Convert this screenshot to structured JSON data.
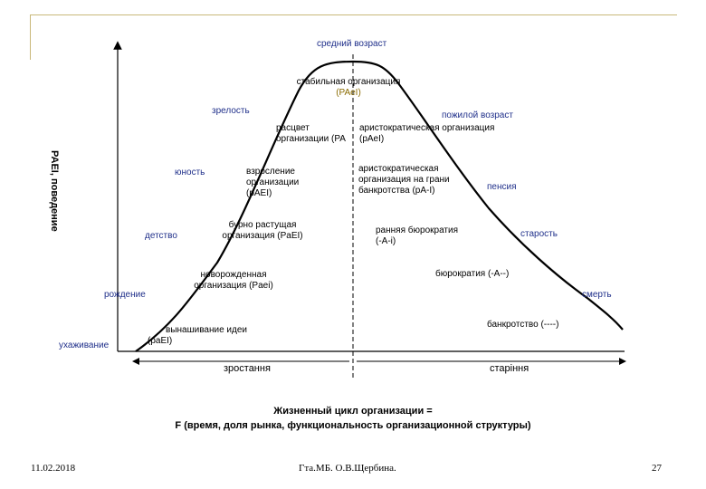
{
  "axis": {
    "y_label": "PAEI, поведение"
  },
  "stages": {
    "middle_age": "средний возраст",
    "stable_org_1": "стабильная организация",
    "stable_org_2": "(PAeI)",
    "maturity": "зрелость",
    "old_age": "пожилой возраст",
    "prime_1": "расцвет",
    "prime_2": "организации (PA",
    "aristo_1": "аристократическая организация",
    "aristo_2": "(pAeI)",
    "youth": "юность",
    "growing_1": "взросление",
    "growing_2": "организации",
    "growing_3": "(pAEI)",
    "bankrupt_edge_1": "аристократическая",
    "bankrupt_edge_2": "организация на грани",
    "bankrupt_edge_3": "банкротства (pA-I)",
    "pension": "пенсия",
    "go_go_1": "бурно растущая",
    "go_go_2": "организация (PaEI)",
    "childhood": "детство",
    "early_bureau_1": "ранняя бюрократия",
    "early_bureau_2": "(-A-i)",
    "senility": "старость",
    "newborn_1": "новорожденная",
    "newborn_2": "организация (Paei)",
    "bureaucracy": "бюрократия (-A--)",
    "birth": "рождение",
    "death": "смерть",
    "nurturing_idea_1": "вынашивание идеи",
    "nurturing_idea_2": "(paEI)",
    "bankruptcy": "банкротство (----)",
    "courtship": "ухаживание"
  },
  "phases": {
    "growth": "зростання",
    "aging": "старіння"
  },
  "caption": {
    "line1": "Жизненный цикл организации =",
    "line2": "F (время, доля рынка, функциональность организационной структуры)"
  },
  "footer": {
    "date": "11.02.2018",
    "author": "Гта.МБ. О.В.Щербина.",
    "page": "27"
  },
  "colors": {
    "frame": "#c9b87a",
    "text_blue": "#1f2f8a",
    "text_amber": "#8a6b00"
  }
}
